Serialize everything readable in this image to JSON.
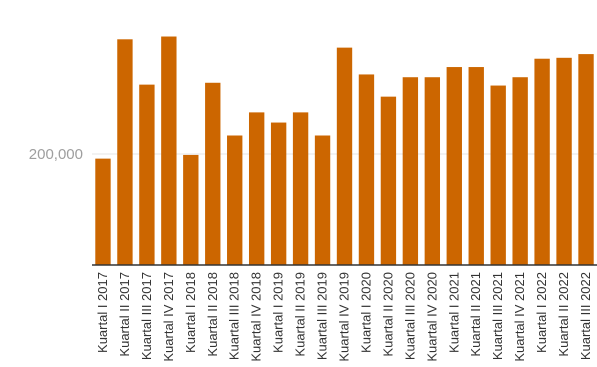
{
  "chart_data": {
    "type": "bar",
    "color": "#cc6600",
    "grid": true,
    "categories": [
      "Kuartal I 2017",
      "Kuartal II 2017",
      "Kuartal III 2017",
      "Kuartal IV 2017",
      "Kuartal I 2018",
      "Kuartal II 2018",
      "Kuartal III 2018",
      "Kuartal IV 2018",
      "Kuartal I 2019",
      "Kuartal II 2019",
      "Kuartal III 2019",
      "Kuartal IV 2019",
      "Kuartal I 2020",
      "Kuartal II 2020",
      "Kuartal III 2020",
      "Kuartal IV 2020",
      "Kuartal I 2021",
      "Kuartal II 2021",
      "Kuartal III 2021",
      "Kuartal IV 2021",
      "Kuartal I 2022",
      "Kuartal II 2022",
      "Kuartal III 2022"
    ],
    "values": [
      197500,
      262000,
      237500,
      263500,
      199500,
      238500,
      210000,
      222500,
      217000,
      222500,
      210000,
      257500,
      243000,
      231000,
      241500,
      241500,
      247000,
      247000,
      237000,
      241500,
      251500,
      252000,
      254000
    ],
    "yticks": [
      {
        "value": 200000,
        "label": "200,000"
      }
    ],
    "ylim": [
      140000,
      267000
    ]
  }
}
